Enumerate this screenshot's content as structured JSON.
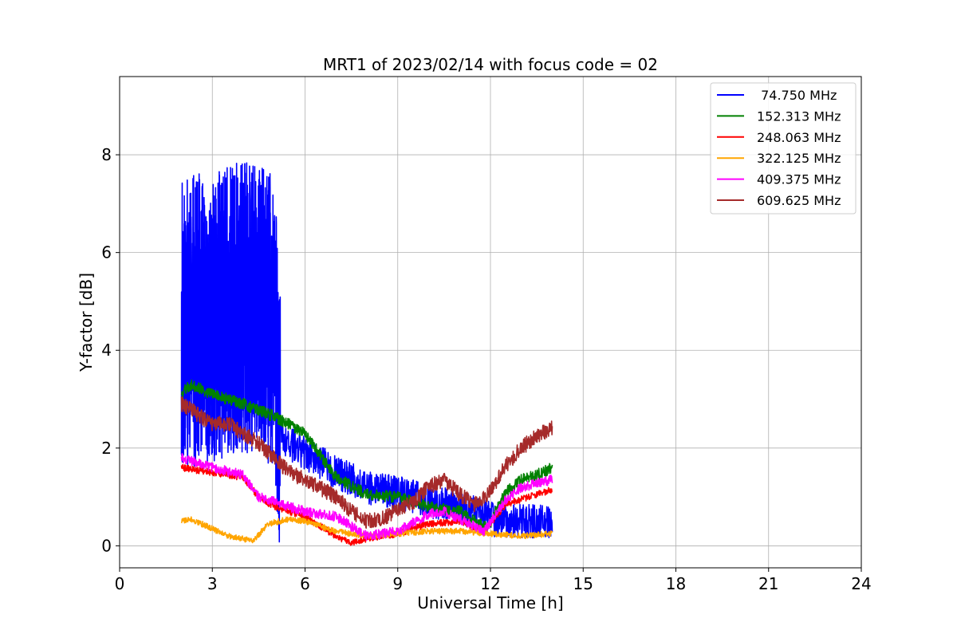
{
  "chart_data": {
    "type": "line",
    "title": "MRT1 of 2023/02/14 with focus code = 02",
    "xlabel": "Universal Time [h]",
    "ylabel": "Y-factor [dB]",
    "xlim": [
      0,
      24
    ],
    "ylim": [
      -0.45,
      9.6
    ],
    "xticks": [
      0,
      3,
      6,
      9,
      12,
      15,
      18,
      21,
      24
    ],
    "yticks": [
      0,
      2,
      4,
      6,
      8
    ],
    "xtick_labels": [
      "0",
      "3",
      "6",
      "9",
      "12",
      "15",
      "18",
      "21",
      "24"
    ],
    "ytick_labels": [
      "0",
      "2",
      "4",
      "6",
      "8"
    ],
    "grid": true,
    "legend_position": "top-right",
    "series": [
      {
        "name": " 74.750 MHz",
        "color": "#0000ff",
        "noise_segments": [
          {
            "x_start": 2.0,
            "x_end": 5.2,
            "amplitude": 3.0,
            "samples": 900
          },
          {
            "x_start": 5.2,
            "x_end": 14.0,
            "amplitude": 0.35,
            "samples": 900
          }
        ],
        "x": [
          2.0,
          2.5,
          3.0,
          3.5,
          4.0,
          4.5,
          5.0,
          5.2,
          5.5,
          6.0,
          7.0,
          8.0,
          9.0,
          10.0,
          11.0,
          11.5,
          12.0,
          12.5,
          13.0,
          13.5,
          14.0
        ],
        "y": [
          4.5,
          4.6,
          4.7,
          4.8,
          4.9,
          4.8,
          4.6,
          2.3,
          2.1,
          1.9,
          1.5,
          1.2,
          1.1,
          0.9,
          0.8,
          0.7,
          0.55,
          0.5,
          0.5,
          0.5,
          0.5
        ]
      },
      {
        "name": "152.313 MHz",
        "color": "#008000",
        "noise_segments": [
          {
            "x_start": 2.0,
            "x_end": 14.0,
            "amplitude": 0.12,
            "samples": 1100
          }
        ],
        "x": [
          2.0,
          2.3,
          3.0,
          4.0,
          5.0,
          6.0,
          7.0,
          8.0,
          9.0,
          10.0,
          11.0,
          11.9,
          12.5,
          13.0,
          13.5,
          14.0
        ],
        "y": [
          3.1,
          3.3,
          3.1,
          2.9,
          2.65,
          2.3,
          1.4,
          1.05,
          1.0,
          0.8,
          0.7,
          0.35,
          1.1,
          1.35,
          1.45,
          1.6
        ]
      },
      {
        "name": "248.063 MHz",
        "color": "#ff0000",
        "noise_segments": [
          {
            "x_start": 2.0,
            "x_end": 14.0,
            "amplitude": 0.07,
            "samples": 1100
          }
        ],
        "x": [
          2.0,
          2.5,
          3.0,
          4.0,
          4.5,
          5.0,
          6.0,
          7.0,
          7.5,
          8.0,
          9.0,
          10.0,
          11.0,
          11.8,
          12.5,
          13.0,
          14.0
        ],
        "y": [
          1.6,
          1.55,
          1.5,
          1.4,
          1.0,
          0.8,
          0.6,
          0.2,
          0.05,
          0.15,
          0.25,
          0.45,
          0.5,
          0.3,
          0.85,
          0.95,
          1.15
        ]
      },
      {
        "name": "322.125 MHz",
        "color": "#ffa500",
        "noise_segments": [
          {
            "x_start": 2.0,
            "x_end": 14.0,
            "amplitude": 0.06,
            "samples": 1100
          }
        ],
        "x": [
          2.0,
          2.3,
          3.0,
          3.5,
          4.0,
          4.3,
          4.8,
          5.5,
          6.0,
          7.0,
          8.0,
          9.0,
          10.0,
          11.0,
          12.0,
          13.0,
          14.0
        ],
        "y": [
          0.5,
          0.55,
          0.35,
          0.2,
          0.15,
          0.08,
          0.45,
          0.55,
          0.5,
          0.3,
          0.2,
          0.25,
          0.3,
          0.3,
          0.25,
          0.2,
          0.25
        ]
      },
      {
        "name": "409.375 MHz",
        "color": "#ff00ff",
        "noise_segments": [
          {
            "x_start": 2.0,
            "x_end": 14.0,
            "amplitude": 0.1,
            "samples": 1100
          }
        ],
        "x": [
          2.0,
          2.3,
          3.0,
          4.0,
          4.5,
          5.0,
          6.0,
          7.0,
          7.5,
          8.0,
          9.0,
          10.0,
          10.5,
          11.0,
          11.8,
          12.5,
          13.0,
          14.0
        ],
        "y": [
          1.8,
          1.75,
          1.6,
          1.45,
          1.0,
          0.9,
          0.7,
          0.6,
          0.4,
          0.2,
          0.3,
          0.65,
          0.7,
          0.55,
          0.3,
          0.95,
          1.2,
          1.35
        ]
      },
      {
        "name": "609.625 MHz",
        "color": "#a52a2a",
        "noise_segments": [
          {
            "x_start": 2.0,
            "x_end": 14.0,
            "amplitude": 0.16,
            "samples": 1100
          }
        ],
        "x": [
          2.0,
          2.5,
          3.0,
          3.5,
          4.0,
          4.5,
          5.0,
          5.5,
          6.0,
          7.0,
          7.5,
          8.0,
          8.5,
          9.0,
          9.5,
          10.0,
          10.5,
          11.0,
          11.5,
          12.0,
          12.5,
          13.0,
          13.5,
          14.0
        ],
        "y": [
          2.9,
          2.7,
          2.5,
          2.5,
          2.3,
          2.1,
          1.8,
          1.5,
          1.35,
          1.0,
          0.7,
          0.5,
          0.55,
          0.75,
          0.9,
          1.2,
          1.35,
          1.05,
          0.85,
          1.1,
          1.65,
          2.0,
          2.25,
          2.4
        ]
      }
    ]
  }
}
